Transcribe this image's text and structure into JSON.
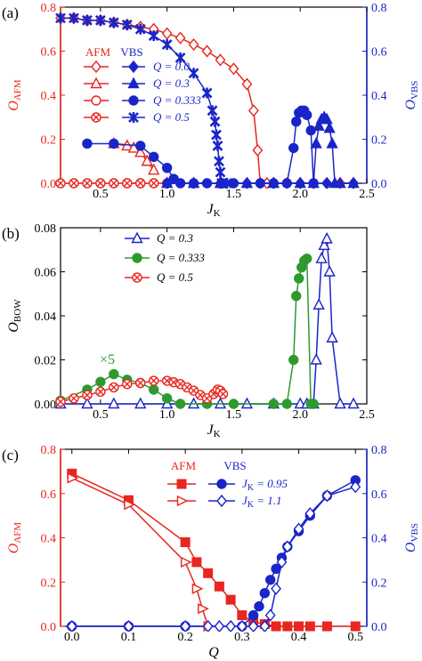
{
  "colors": {
    "red": "#e8261f",
    "blue": "#1a25c9",
    "green": "#2e9a2e",
    "black": "#000000"
  },
  "chart_data": [
    {
      "panel": "(a)",
      "type": "line",
      "x_label": "J",
      "x_label_sub": "K",
      "y_label_left": "O",
      "y_label_left_sub": "AFM",
      "y_label_right": "O",
      "y_label_right_sub": "VBS",
      "xlim": [
        0.2,
        2.5
      ],
      "ylim_left": [
        0,
        0.8
      ],
      "ylim_right": [
        0,
        0.8
      ],
      "x_ticks": [
        "0.5",
        "1.0",
        "1.5",
        "2.0",
        "2.5"
      ],
      "y_ticks_left": [
        "0.0",
        "0.2",
        "0.4",
        "0.6",
        "0.8"
      ],
      "y_ticks_right": [
        "0.0",
        "0.2",
        "0.4",
        "0.6",
        "0.8"
      ],
      "legend": {
        "position": "left",
        "col1_header": "AFM",
        "col2_header": "VBS",
        "entries": [
          "Q = 0.0",
          "Q = 0.3",
          "Q = 0.333",
          "Q = 0.5"
        ]
      },
      "series": [
        {
          "name": "AFM Q = 0.0",
          "axis": "left",
          "color": "red",
          "marker": "diamond-open",
          "x": [
            0.2,
            0.3,
            0.4,
            0.5,
            0.6,
            0.7,
            0.8,
            0.9,
            1.0,
            1.1,
            1.2,
            1.3,
            1.4,
            1.5,
            1.6,
            1.65,
            1.68,
            1.7,
            1.75,
            1.8,
            1.9,
            2.0,
            2.1,
            2.2,
            2.3,
            2.4
          ],
          "y": [
            0.75,
            0.75,
            0.74,
            0.74,
            0.73,
            0.72,
            0.71,
            0.7,
            0.68,
            0.66,
            0.63,
            0.6,
            0.56,
            0.52,
            0.45,
            0.33,
            0.15,
            0.0,
            0.0,
            0.0,
            0.0,
            0.0,
            0.0,
            0.0,
            0.0,
            0.0
          ]
        },
        {
          "name": "AFM Q = 0.3",
          "axis": "left",
          "color": "red",
          "marker": "triangle-open",
          "x": [
            0.6,
            0.7,
            0.75,
            0.8,
            0.85,
            0.9
          ],
          "y": [
            0.18,
            0.17,
            0.16,
            0.14,
            0.1,
            0.06
          ]
        },
        {
          "name": "AFM Q = 0.333",
          "axis": "left",
          "color": "red",
          "marker": "circle-open",
          "x": [
            0.7,
            0.8
          ],
          "y": [
            0.0,
            0.0
          ]
        },
        {
          "name": "AFM Q = 0.5",
          "axis": "left",
          "color": "red",
          "marker": "circle-x",
          "x": [
            0.2,
            0.3,
            0.4,
            0.5,
            0.6,
            0.7,
            0.8,
            0.9,
            1.0
          ],
          "y": [
            0.0,
            0.0,
            0.0,
            0.0,
            0.0,
            0.0,
            0.0,
            0.0,
            0.0
          ]
        },
        {
          "name": "VBS Q = 0.0",
          "axis": "right",
          "color": "blue",
          "marker": "diamond-filled",
          "x": [
            1.0,
            1.2,
            1.4,
            1.6,
            1.8,
            2.0,
            2.2,
            2.4
          ],
          "y": [
            0.0,
            0.0,
            0.0,
            0.0,
            0.0,
            0.0,
            0.0,
            0.0
          ]
        },
        {
          "name": "VBS Q = 0.3",
          "axis": "right",
          "color": "blue",
          "marker": "triangle-filled",
          "x": [
            1.0,
            1.2,
            1.4,
            1.6,
            1.8,
            2.0,
            2.1,
            2.12,
            2.14,
            2.16,
            2.18,
            2.2,
            2.22,
            2.24,
            2.26,
            2.3,
            2.4
          ],
          "y": [
            0.0,
            0.0,
            0.0,
            0.0,
            0.0,
            0.0,
            0.0,
            0.18,
            0.26,
            0.29,
            0.3,
            0.29,
            0.25,
            0.18,
            0.0,
            0.0,
            0.0
          ]
        },
        {
          "name": "VBS Q = 0.333",
          "axis": "right",
          "color": "blue",
          "marker": "circle-filled",
          "x": [
            0.4,
            0.6,
            0.8,
            0.9,
            1.0,
            1.05,
            1.1,
            1.2,
            1.3,
            1.5,
            1.7,
            1.8,
            1.9,
            1.95,
            1.97,
            1.99,
            2.01,
            2.03,
            2.05,
            2.08,
            2.1
          ],
          "y": [
            0.18,
            0.18,
            0.17,
            0.12,
            0.07,
            0.02,
            0.0,
            0.0,
            0.0,
            0.0,
            0.0,
            0.0,
            0.0,
            0.16,
            0.28,
            0.32,
            0.33,
            0.33,
            0.31,
            0.24,
            0.0
          ]
        },
        {
          "name": "VBS Q = 0.5",
          "axis": "right",
          "color": "blue",
          "marker": "x-star",
          "x": [
            0.2,
            0.3,
            0.4,
            0.5,
            0.6,
            0.7,
            0.8,
            0.9,
            1.0,
            1.1,
            1.2,
            1.3,
            1.34,
            1.36,
            1.37,
            1.38,
            1.39,
            1.4,
            1.41,
            1.45
          ],
          "y": [
            0.75,
            0.75,
            0.74,
            0.74,
            0.73,
            0.72,
            0.7,
            0.67,
            0.63,
            0.57,
            0.5,
            0.41,
            0.33,
            0.28,
            0.22,
            0.17,
            0.1,
            0.05,
            0.0,
            0.0
          ]
        }
      ]
    },
    {
      "panel": "(b)",
      "type": "line",
      "x_label": "J",
      "x_label_sub": "K",
      "y_label_left": "O",
      "y_label_left_sub": "BOW",
      "xlim": [
        0.2,
        2.5
      ],
      "ylim_left": [
        0,
        0.08
      ],
      "x_ticks": [
        "0.5",
        "1.0",
        "1.5",
        "2.0",
        "2.5"
      ],
      "y_ticks_left": [
        "0.00",
        "0.02",
        "0.04",
        "0.06",
        "0.08"
      ],
      "annotation": "×5",
      "legend": {
        "position": "top-left",
        "entries": [
          "Q = 0.3",
          "Q = 0.333",
          "Q = 0.5"
        ]
      },
      "series": [
        {
          "name": "Q = 0.3",
          "color": "blue",
          "marker": "triangle-open",
          "x": [
            0.2,
            0.4,
            0.6,
            0.8,
            1.0,
            1.2,
            1.4,
            1.6,
            1.8,
            2.0,
            2.05,
            2.1,
            2.12,
            2.14,
            2.16,
            2.18,
            2.2,
            2.22,
            2.24,
            2.3,
            2.4
          ],
          "y": [
            0.0,
            0.0,
            0.0,
            0.0,
            0.0,
            0.0,
            0.0,
            0.0,
            0.0,
            0.0,
            0.0,
            0.0,
            0.02,
            0.045,
            0.066,
            0.072,
            0.075,
            0.06,
            0.03,
            0.0,
            0.0
          ]
        },
        {
          "name": "Q = 0.333",
          "color": "green",
          "marker": "circle-filled",
          "x": [
            0.2,
            0.4,
            0.5,
            0.6,
            0.7,
            0.8,
            0.9,
            1.0,
            1.1,
            1.3,
            1.5,
            1.8,
            1.9,
            1.95,
            1.97,
            1.99,
            2.01,
            2.03,
            2.05,
            2.08,
            2.1
          ],
          "y": [
            0.0015,
            0.0065,
            0.01,
            0.0135,
            0.011,
            0.0095,
            0.0065,
            0.0025,
            0.0,
            0.0,
            0.0,
            0.0,
            0.0,
            0.02,
            0.049,
            0.057,
            0.062,
            0.065,
            0.066,
            0.0,
            0.0
          ]
        },
        {
          "name": "Q = 0.5",
          "color": "red",
          "marker": "circle-x",
          "x": [
            0.2,
            0.3,
            0.4,
            0.5,
            0.6,
            0.7,
            0.8,
            0.9,
            1.0,
            1.05,
            1.1,
            1.15,
            1.2,
            1.25,
            1.3,
            1.35,
            1.38,
            1.4,
            1.42
          ],
          "y": [
            0.001,
            0.0025,
            0.004,
            0.0055,
            0.0075,
            0.009,
            0.0095,
            0.0105,
            0.0105,
            0.0098,
            0.009,
            0.0075,
            0.006,
            0.004,
            0.0025,
            0.0045,
            0.0065,
            0.006,
            0.0045
          ]
        }
      ]
    },
    {
      "panel": "(c)",
      "type": "line",
      "x_label": "Q",
      "y_label_left": "O",
      "y_label_left_sub": "AFM",
      "y_label_right": "O",
      "y_label_right_sub": "VBS",
      "xlim": [
        -0.02,
        0.52
      ],
      "ylim_left": [
        0,
        0.8
      ],
      "ylim_right": [
        0,
        0.8
      ],
      "x_ticks": [
        "0.0",
        "0.1",
        "0.2",
        "0.3",
        "0.4",
        "0.5"
      ],
      "y_ticks_left": [
        "0.0",
        "0.2",
        "0.4",
        "0.6",
        "0.8"
      ],
      "y_ticks_right": [
        "0.0",
        "0.2",
        "0.4",
        "0.6",
        "0.8"
      ],
      "legend": {
        "position": "top-center",
        "col1_header": "AFM",
        "col2_header": "VBS",
        "entries": [
          "J = 0.95",
          "J = 1.1"
        ],
        "entry_sub": "K"
      },
      "series": [
        {
          "name": "AFM J = 0.95",
          "axis": "left",
          "color": "red",
          "marker": "square-filled",
          "x": [
            0.0,
            0.1,
            0.2,
            0.22,
            0.24,
            0.26,
            0.28,
            0.3,
            0.32,
            0.34,
            0.36,
            0.38,
            0.4,
            0.42,
            0.45,
            0.5
          ],
          "y": [
            0.69,
            0.57,
            0.38,
            0.29,
            0.24,
            0.18,
            0.12,
            0.05,
            0.02,
            0.01,
            0.0,
            0.0,
            0.0,
            0.0,
            0.0,
            0.0
          ]
        },
        {
          "name": "AFM J = 1.1",
          "axis": "left",
          "color": "red",
          "marker": "triangle-right-open",
          "x": [
            0.0,
            0.1,
            0.2,
            0.22,
            0.23,
            0.24
          ],
          "y": [
            0.67,
            0.55,
            0.29,
            0.17,
            0.08,
            0.0
          ]
        },
        {
          "name": "VBS J = 0.95",
          "axis": "right",
          "color": "blue",
          "marker": "circle-filled",
          "x": [
            0.0,
            0.1,
            0.2,
            0.3,
            0.32,
            0.33,
            0.34,
            0.35,
            0.36,
            0.37,
            0.38,
            0.4,
            0.42,
            0.45,
            0.5
          ],
          "y": [
            0.0,
            0.0,
            0.0,
            0.0,
            0.05,
            0.09,
            0.15,
            0.21,
            0.26,
            0.31,
            0.36,
            0.43,
            0.5,
            0.59,
            0.66
          ]
        },
        {
          "name": "VBS J = 1.1",
          "axis": "right",
          "color": "blue",
          "marker": "diamond-open",
          "x": [
            0.0,
            0.1,
            0.2,
            0.24,
            0.26,
            0.28,
            0.3,
            0.32,
            0.34,
            0.35,
            0.36,
            0.37,
            0.38,
            0.4,
            0.42,
            0.45,
            0.5
          ],
          "y": [
            0.0,
            0.0,
            0.0,
            0.0,
            0.0,
            0.0,
            0.0,
            0.0,
            0.0,
            0.05,
            0.17,
            0.29,
            0.36,
            0.44,
            0.51,
            0.59,
            0.63
          ]
        }
      ]
    }
  ]
}
